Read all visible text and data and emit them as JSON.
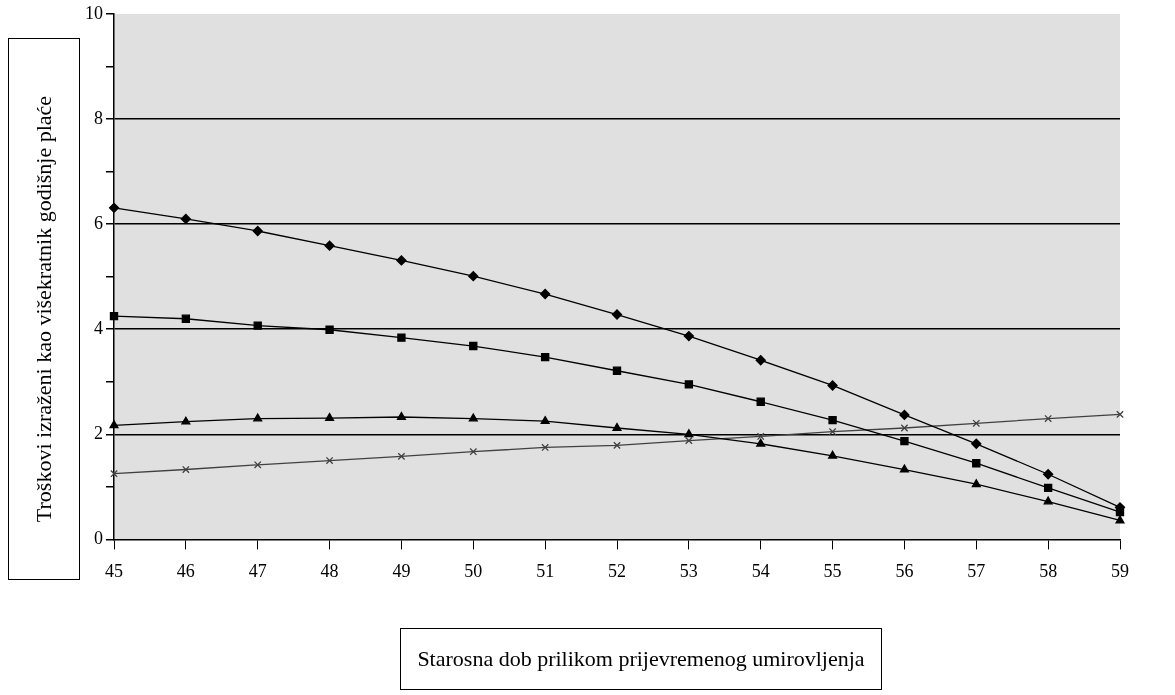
{
  "chart_data": {
    "type": "line",
    "xlabel": "Starosna dob prilikom prijevremenog umirovljenja",
    "ylabel": "Troškovi izraženi kao višekratnik godišnje plaće",
    "categories": [
      "45",
      "46",
      "47",
      "48",
      "49",
      "50",
      "51",
      "52",
      "53",
      "54",
      "55",
      "56",
      "57",
      "58",
      "59"
    ],
    "series": [
      {
        "color": "#000000",
        "marker": "diamond",
        "values": [
          6.31,
          6.1,
          5.87,
          5.59,
          5.31,
          5.01,
          4.67,
          4.28,
          3.87,
          3.41,
          2.93,
          2.37,
          1.82,
          1.24,
          0.61
        ]
      },
      {
        "color": "#000000",
        "marker": "square",
        "values": [
          4.25,
          4.2,
          4.07,
          3.99,
          3.84,
          3.68,
          3.47,
          3.21,
          2.95,
          2.62,
          2.27,
          1.87,
          1.45,
          0.98,
          0.52
        ]
      },
      {
        "color": "#000000",
        "marker": "triangle",
        "values": [
          2.17,
          2.24,
          2.3,
          2.31,
          2.33,
          2.3,
          2.25,
          2.12,
          2.0,
          1.82,
          1.59,
          1.33,
          1.05,
          0.72,
          0.36
        ]
      },
      {
        "color": "#404040",
        "marker": "cross",
        "values": [
          1.25,
          1.33,
          1.42,
          1.5,
          1.58,
          1.67,
          1.75,
          1.79,
          1.88,
          1.96,
          2.05,
          2.12,
          2.21,
          2.3,
          2.38
        ]
      }
    ],
    "ylim": [
      0,
      10
    ],
    "yticks": [
      0,
      {
        "value": 1,
        "label": null
      },
      2,
      {
        "value": 3,
        "label": null
      },
      4,
      {
        "value": 5,
        "label": null
      },
      6,
      {
        "value": 7,
        "label": null
      },
      8,
      {
        "value": 9,
        "label": null
      },
      10
    ],
    "grid": "y",
    "legend": false,
    "line_style": "solid"
  }
}
